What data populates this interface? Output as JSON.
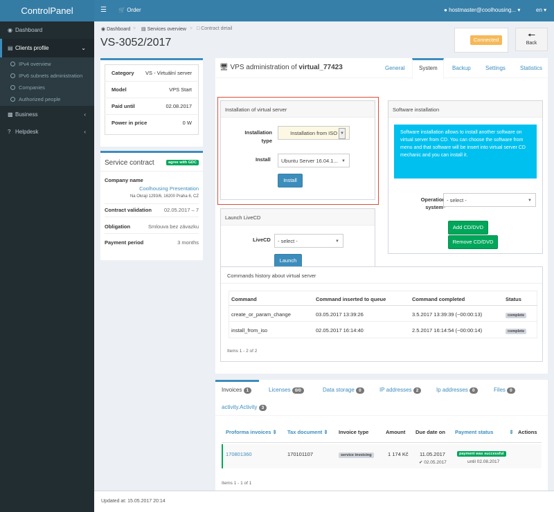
{
  "brand": "ControlPanel",
  "topbar": {
    "order": "Order",
    "user": "hostmaster@coolhousing...",
    "lang": "en"
  },
  "sidebar": {
    "items": [
      {
        "label": "Dashboard",
        "icon": "dashboard-icon"
      },
      {
        "label": "Clients profile",
        "icon": "list-icon"
      },
      {
        "label": "Business",
        "icon": "money-icon"
      },
      {
        "label": "Helpdesk",
        "icon": "question-icon"
      }
    ],
    "sub": [
      "IPv4 overview",
      "IPv6 subnets administration",
      "Companies",
      "Authorized people"
    ]
  },
  "breadcrumb": [
    "Dashboard",
    "Services overview",
    "Contract detail"
  ],
  "page_title": "VS-3052/2017",
  "status": "Connected",
  "back": "Back",
  "info": [
    {
      "k": "Category",
      "v": "VS - Virtuální server"
    },
    {
      "k": "Model",
      "v": "VPS Start"
    },
    {
      "k": "Paid until",
      "v": "02.08.2017"
    },
    {
      "k": "Power in price",
      "v": "0 W"
    }
  ],
  "contract": {
    "title": "Service contract",
    "badge": "agree with GDC",
    "company_label": "Company name",
    "company": "Coolhousing Presentation",
    "address": "Na Okraji 1293/6, 16200 Praha 6, CZ",
    "validation_label": "Contract validation",
    "validation": "02.05.2017 – 7",
    "obligation_label": "Obligation",
    "obligation": "Smlouva bez závazku",
    "period_label": "Payment period",
    "period": "3 months"
  },
  "vps": {
    "prefix": "VPS administration of ",
    "name": "virtual_77423",
    "tabs": [
      "General",
      "System",
      "Backup",
      "Settings",
      "Statistics"
    ]
  },
  "install": {
    "title": "Installation of virtual server",
    "type_label": "Installation type",
    "type_value": "Installation from ISO i",
    "install_label": "Install",
    "install_value": "Ubuntu Server 16.04.1...",
    "button": "Install"
  },
  "livecd": {
    "title": "Launch LiveCD",
    "label": "LiveCD",
    "value": "- select -",
    "button": "Launch"
  },
  "software": {
    "title": "Software installation",
    "info": "Software installation allows to install another software on virtual server from CD. You can choose the software from menu and that software will be insert into virtual server CD mechanic and you can install it.",
    "os_label": "Operation system*",
    "os_value": "- select -",
    "add": "Add CD/DVD",
    "remove": "Remove CD/DVD"
  },
  "history": {
    "title": "Commands history about virtual server",
    "cols": [
      "Command",
      "Command inserted to queue",
      "Command completed",
      "Status"
    ],
    "rows": [
      [
        "create_or_param_change",
        "03.05.2017 13:39:26",
        "3.5.2017 13:39:39 (~00:00:13)",
        "complete"
      ],
      [
        "install_from_iso",
        "02.05.2017 16:14:40",
        "2.5.2017 16:14:54 (~00:00:14)",
        "complete"
      ]
    ],
    "footer": "Items 1 - 2 of 2"
  },
  "lower_tabs": [
    {
      "label": "Invoices",
      "count": "1"
    },
    {
      "label": "Licenses",
      "count": "0/0"
    },
    {
      "label": "Data storage",
      "count": "0"
    },
    {
      "label": "IP addresses",
      "count": "2"
    },
    {
      "label": "Ip addresses",
      "count": "0"
    },
    {
      "label": "Files",
      "count": "0"
    },
    {
      "label": "activity.Activity",
      "count": "3"
    }
  ],
  "invoices": {
    "cols": [
      "Proforma invoices",
      "Tax document",
      "Invoice type",
      "Amount",
      "Due date on",
      "Payment status",
      "Actions"
    ],
    "row": {
      "proforma": "170801360",
      "tax": "170101107",
      "type": "service invoicing",
      "amount": "1 174 Kč",
      "due": "11.05.2017",
      "paid": "02.05.2017",
      "status": "payment was successful",
      "until": "until 02.08.2017"
    },
    "footer": "Items 1 - 1 of 1"
  },
  "footer": "Updated at: 15.05.2017 20:14"
}
